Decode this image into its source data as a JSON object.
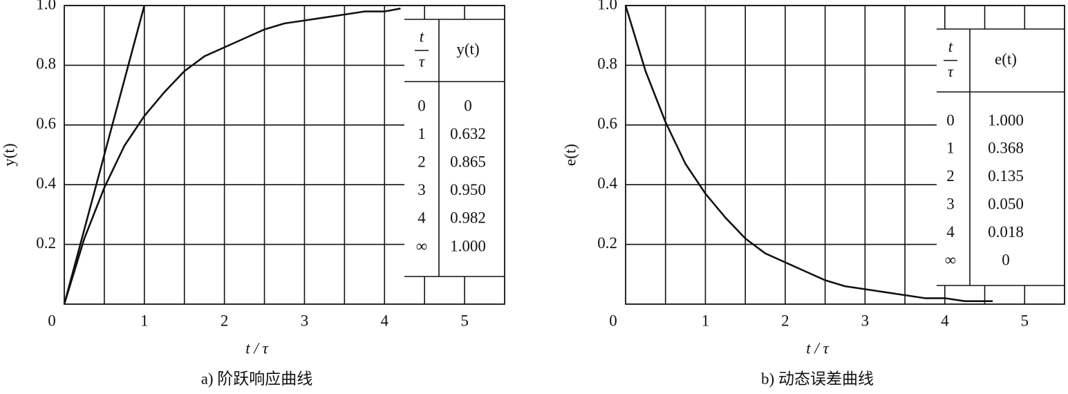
{
  "chart_data": [
    {
      "type": "line",
      "caption": "a) 阶跃响应曲线",
      "xlabel": "t / τ",
      "ylabel": "y(t)",
      "xlim": [
        0,
        5.5
      ],
      "xticks": [
        0,
        1,
        2,
        3,
        4,
        5
      ],
      "xgrid": [
        0.5,
        1,
        1.5,
        2,
        2.5,
        3,
        3.5,
        4,
        4.5,
        5
      ],
      "ylim": [
        0,
        1
      ],
      "yticks": [
        0.2,
        0.4,
        0.6,
        0.8,
        {
          "value": 1,
          "label": "1.0"
        }
      ],
      "grid": true,
      "series": [
        {
          "color": "#111111",
          "x": [
            0,
            0.25,
            0.5,
            0.75,
            1,
            1.25,
            1.5,
            1.75,
            2,
            2.25,
            2.5,
            2.75,
            3,
            3.25,
            3.5,
            3.75,
            4,
            4.2
          ],
          "values": [
            0,
            0.22,
            0.39,
            0.53,
            0.63,
            0.71,
            0.78,
            0.83,
            0.86,
            0.89,
            0.92,
            0.94,
            0.95,
            0.96,
            0.97,
            0.98,
            0.98,
            0.99
          ]
        },
        {
          "color": "#111111",
          "x": [
            0,
            1
          ],
          "values": [
            0,
            1
          ]
        }
      ],
      "table": {
        "columns": [
          {
            "numerator": "t",
            "denominator": "τ"
          },
          "y(t)"
        ],
        "rows": [
          [
            "0",
            "0"
          ],
          [
            "1",
            "0.632"
          ],
          [
            "2",
            "0.865"
          ],
          [
            "3",
            "0.950"
          ],
          [
            "4",
            "0.982"
          ],
          [
            "∞",
            "1.000"
          ]
        ]
      }
    },
    {
      "type": "line",
      "caption": "b) 动态误差曲线",
      "xlabel": "t / τ",
      "ylabel": "e(t)",
      "xlim": [
        0,
        5.5
      ],
      "xticks": [
        0,
        1,
        2,
        3,
        4,
        5
      ],
      "xgrid": [
        0.5,
        1,
        1.5,
        2,
        2.5,
        3,
        3.5,
        4,
        4.5,
        5
      ],
      "ylim": [
        0,
        1
      ],
      "yticks": [
        0.2,
        0.4,
        0.6,
        0.8,
        {
          "value": 1,
          "label": "1.0"
        }
      ],
      "grid": true,
      "series": [
        {
          "color": "#111111",
          "x": [
            0,
            0.25,
            0.5,
            0.75,
            1,
            1.25,
            1.5,
            1.75,
            2,
            2.25,
            2.5,
            2.75,
            3,
            3.25,
            3.5,
            3.75,
            4,
            4.25,
            4.5,
            4.6
          ],
          "values": [
            1,
            0.78,
            0.61,
            0.47,
            0.37,
            0.29,
            0.22,
            0.17,
            0.14,
            0.11,
            0.08,
            0.06,
            0.05,
            0.04,
            0.03,
            0.02,
            0.02,
            0.01,
            0.01,
            0.01
          ]
        }
      ],
      "table": {
        "columns": [
          {
            "numerator": "t",
            "denominator": "τ"
          },
          "e(t)"
        ],
        "rows": [
          [
            "0",
            "1.000"
          ],
          [
            "1",
            "0.368"
          ],
          [
            "2",
            "0.135"
          ],
          [
            "3",
            "0.050"
          ],
          [
            "4",
            "0.018"
          ],
          [
            "∞",
            "0"
          ]
        ]
      }
    }
  ]
}
